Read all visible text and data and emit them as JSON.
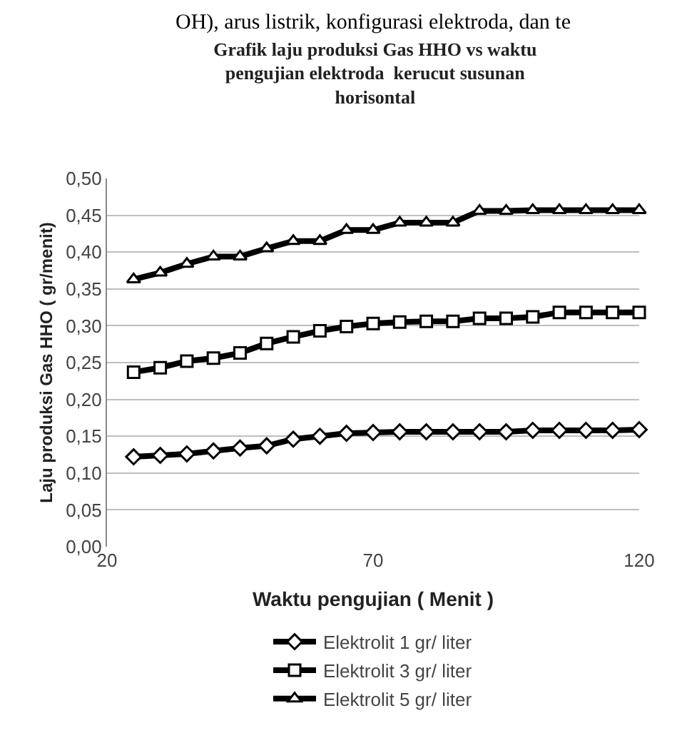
{
  "chart_data": {
    "type": "line",
    "title": "Grafik laju produksi Gas HHO vs waktu pengujian elektroda  kerucut susunan horisontal",
    "xlabel": "Waktu pengujian ( Menit )",
    "ylabel": "Laju produksi Gas HHO ( gr/menit)",
    "annotations": [
      "OH), arus listrik, konfigurasi elektroda, dan te"
    ],
    "x": [
      25,
      30,
      35,
      40,
      45,
      50,
      55,
      60,
      65,
      70,
      75,
      80,
      85,
      90,
      95,
      100,
      105,
      110,
      115,
      120
    ],
    "series": [
      {
        "name": "Elektrolit 1 gr/ liter",
        "color": "#000000",
        "marker": "diamond",
        "values": [
          0.122,
          0.124,
          0.126,
          0.13,
          0.134,
          0.137,
          0.146,
          0.15,
          0.154,
          0.155,
          0.156,
          0.156,
          0.156,
          0.156,
          0.156,
          0.158,
          0.158,
          0.158,
          0.158,
          0.159
        ]
      },
      {
        "name": "Elektrolit 3 gr/ liter",
        "color": "#000000",
        "marker": "square",
        "values": [
          0.237,
          0.243,
          0.252,
          0.256,
          0.263,
          0.276,
          0.285,
          0.293,
          0.299,
          0.303,
          0.305,
          0.306,
          0.306,
          0.31,
          0.31,
          0.312,
          0.318,
          0.318,
          0.318,
          0.318
        ]
      },
      {
        "name": "Elektrolit 5 gr/ liter",
        "color": "#000000",
        "marker": "triangle",
        "values": [
          0.363,
          0.372,
          0.384,
          0.394,
          0.394,
          0.405,
          0.415,
          0.415,
          0.43,
          0.43,
          0.44,
          0.44,
          0.44,
          0.456,
          0.456,
          0.457,
          0.457,
          0.457,
          0.457,
          0.457
        ]
      }
    ],
    "xlim": [
      20,
      120
    ],
    "xticks": [
      20,
      70,
      120
    ],
    "ylim": [
      0,
      0.5
    ],
    "yticks": [
      {
        "value": 0,
        "label": "0,00"
      },
      {
        "value": 0.05,
        "label": "0,05"
      },
      {
        "value": 0.1,
        "label": "0,10"
      },
      {
        "value": 0.15,
        "label": "0,15"
      },
      {
        "value": 0.2,
        "label": "0,20"
      },
      {
        "value": 0.25,
        "label": "0,25"
      },
      {
        "value": 0.3,
        "label": "0,30"
      },
      {
        "value": 0.35,
        "label": "0,35"
      },
      {
        "value": 0.4,
        "label": "0,40"
      },
      {
        "value": 0.45,
        "label": "0,45"
      },
      {
        "value": 0.5,
        "label": "0,50"
      }
    ],
    "grid": "y",
    "legend": "bottom"
  }
}
